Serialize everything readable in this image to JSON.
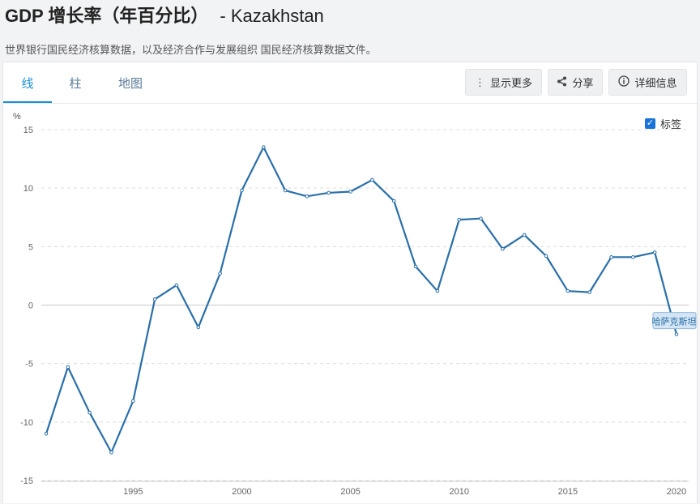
{
  "header": {
    "title": "GDP 增长率（年百分比）",
    "country": "- Kazakhstan",
    "subtitle": "世界银行国民经济核算数据，以及经济合作与发展组织 国民经济核算数据文件。"
  },
  "tabs": [
    {
      "label": "线",
      "active": true
    },
    {
      "label": "柱",
      "active": false
    },
    {
      "label": "地图",
      "active": false
    }
  ],
  "toolbar": {
    "more_label": "显示更多",
    "share_label": "分享",
    "info_label": "详细信息"
  },
  "labels_toggle": {
    "label": "标签",
    "checked": true
  },
  "colors": {
    "line": "#2a6fa8",
    "accent": "#1a8fd6",
    "grid": "#dcdcdc"
  },
  "chart_data": {
    "type": "line",
    "ylabel": "%",
    "ylim": [
      -15,
      15
    ],
    "yticks": [
      15,
      10,
      5,
      0,
      -5,
      -10,
      -15
    ],
    "xticks": [
      1995,
      2000,
      2005,
      2010,
      2015,
      2020
    ],
    "x": [
      1991,
      1992,
      1993,
      1994,
      1995,
      1996,
      1997,
      1998,
      1999,
      2000,
      2001,
      2002,
      2003,
      2004,
      2005,
      2006,
      2007,
      2008,
      2009,
      2010,
      2011,
      2012,
      2013,
      2014,
      2015,
      2016,
      2017,
      2018,
      2019,
      2020
    ],
    "series": [
      {
        "name": "哈萨克斯坦",
        "values": [
          -11.0,
          -5.3,
          -9.2,
          -12.6,
          -8.2,
          0.5,
          1.7,
          -1.9,
          2.7,
          9.8,
          13.5,
          9.8,
          9.3,
          9.6,
          9.7,
          10.7,
          8.9,
          3.3,
          1.2,
          7.3,
          7.4,
          4.8,
          6.0,
          4.2,
          1.2,
          1.1,
          4.1,
          4.1,
          4.5,
          -2.5
        ]
      }
    ],
    "grid": true,
    "legend": "end-label"
  }
}
